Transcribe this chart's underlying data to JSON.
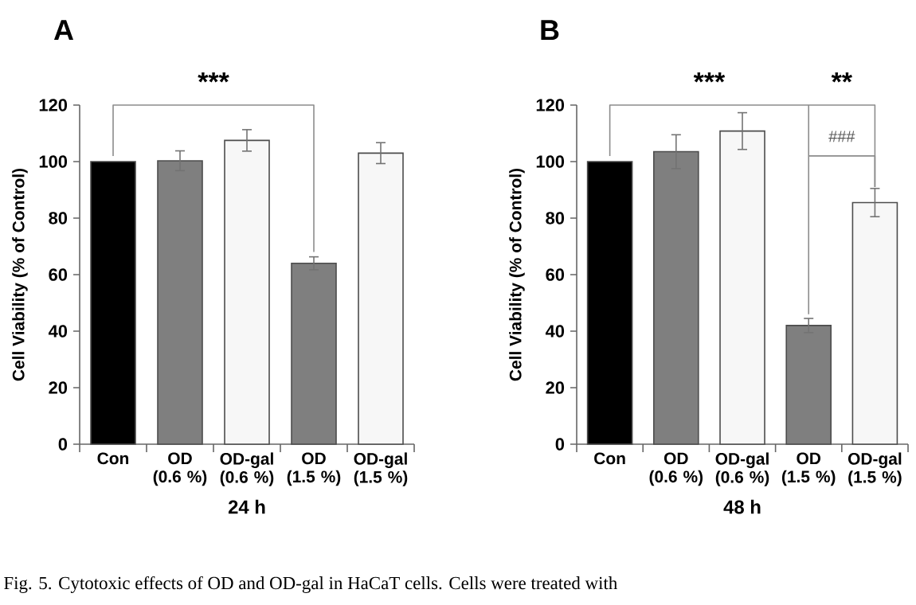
{
  "chart_data": [
    {
      "type": "bar",
      "title": "A",
      "xlabel": "24 h",
      "ylabel": "Cell Viability (% of Control)",
      "categories": [
        "Con",
        "OD (0.6 %)",
        "OD-gal (0.6 %)",
        "OD (1.5 %)",
        "OD-gal (1.5 %)"
      ],
      "values": [
        100,
        100.3,
        107.5,
        64,
        103
      ],
      "errors": [
        null,
        3.5,
        3.8,
        2.3,
        3.7
      ],
      "colors": [
        "#000000",
        "#7f7f7f",
        "#f7f7f7",
        "#7f7f7f",
        "#f7f7f7"
      ],
      "ylim": [
        0,
        120
      ],
      "yticks": [
        0,
        20,
        40,
        60,
        80,
        100,
        120
      ],
      "annotations": [
        "***",
        "Fig. 5. Cytotoxic effects of OD and OD-gal in HaCaT cells. Cells were treated with"
      ]
    },
    {
      "type": "bar",
      "title": "B",
      "xlabel": "48 h",
      "ylabel": "Cell Viability (% of Control)",
      "categories": [
        "Con",
        "OD (0.6 %)",
        "OD-gal (0.6 %)",
        "OD (1.5 %)",
        "OD-gal (1.5 %)"
      ],
      "values": [
        100,
        103.5,
        110.8,
        42,
        85.5
      ],
      "errors": [
        null,
        6,
        6.5,
        2.5,
        5
      ],
      "colors": [
        "#000000",
        "#7f7f7f",
        "#f7f7f7",
        "#7f7f7f",
        "#f7f7f7"
      ],
      "ylim": [
        0,
        120
      ],
      "yticks": [
        0,
        20,
        40,
        60,
        80,
        100,
        120
      ],
      "annotations": [
        "***",
        "**",
        "###"
      ]
    }
  ]
}
